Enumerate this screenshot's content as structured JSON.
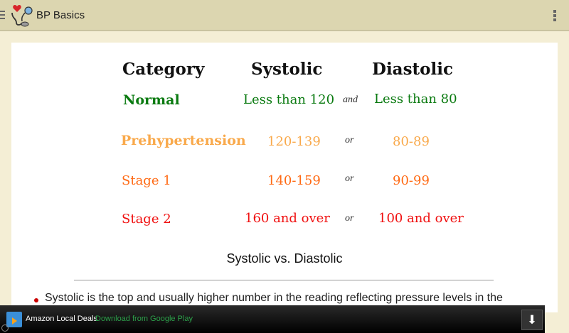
{
  "app": {
    "title": "BP Basics"
  },
  "table": {
    "headers": {
      "category": "Category",
      "systolic": "Systolic",
      "diastolic": "Diastolic"
    },
    "rows": [
      {
        "category": "Normal",
        "systolic": "Less than 120",
        "conj": "and",
        "diastolic": "Less than 80",
        "color": "#0a7a10"
      },
      {
        "category": "Prehypertension",
        "systolic": "120-139",
        "conj": "or",
        "diastolic": "80-89",
        "color": "#f9a94b"
      },
      {
        "category": "Stage 1",
        "systolic": "140-159",
        "conj": "or",
        "diastolic": "90-99",
        "color": "#ff6a14"
      },
      {
        "category": "Stage 2",
        "systolic": "160 and over",
        "conj": "or",
        "diastolic": "100 and over",
        "color": "#f01010"
      }
    ]
  },
  "section": {
    "title": "Systolic vs. Diastolic",
    "bullet": "Systolic is the top and usually higher number in the reading reflecting pressure levels in the"
  },
  "ad": {
    "name": "Amazon Local Deals",
    "cta": "Download from Google Play"
  }
}
